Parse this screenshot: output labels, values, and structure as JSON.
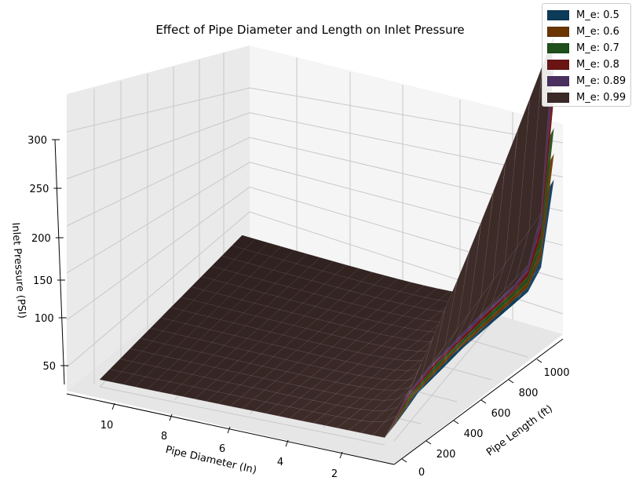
{
  "chart_data": {
    "type": "surface3d",
    "title": "Effect of Pipe Diameter and Length on Inlet Pressure",
    "xlabel": "Pipe Diameter (In)",
    "ylabel": "Pipe Length (ft)",
    "zlabel": "Inlet Pressure (PSI)",
    "x_ticks": [
      2,
      4,
      6,
      8,
      10
    ],
    "y_ticks": [
      0,
      200,
      400,
      600,
      800,
      1000
    ],
    "z_ticks": [
      50,
      100,
      150,
      200,
      250,
      300
    ],
    "xlim": [
      1,
      12
    ],
    "ylim": [
      0,
      1100
    ],
    "zlim": [
      15,
      310
    ],
    "grid": true,
    "legend_position": "top-right",
    "series": [
      {
        "name": "M_e: 0.5",
        "color": "#0d3b5a",
        "max_pressure": 165
      },
      {
        "name": "M_e: 0.6",
        "color": "#6b3500",
        "max_pressure": 190
      },
      {
        "name": "M_e: 0.7",
        "color": "#1f4f1a",
        "max_pressure": 215
      },
      {
        "name": "M_e: 0.8",
        "color": "#6b1414",
        "max_pressure": 245
      },
      {
        "name": "M_e: 0.89",
        "color": "#4a3060",
        "max_pressure": 275
      },
      {
        "name": "M_e: 0.99",
        "color": "#3b2a27",
        "max_pressure": 305
      }
    ]
  }
}
